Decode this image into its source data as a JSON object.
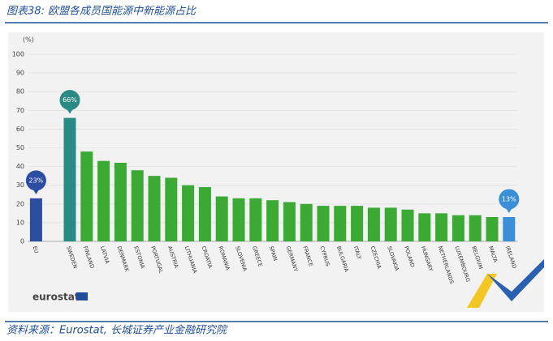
{
  "header": {
    "title": "图表38: 欧盟各成员国能源中新能源占比"
  },
  "footer": {
    "source": "资料来源：Eurostat, 长城证券产业金融研究院"
  },
  "chart_data": {
    "type": "bar",
    "y_label": "(%)",
    "logo": "eurostat",
    "categories": [
      "EU",
      null,
      "SWEDEN",
      "FINLAND",
      "LATVIA",
      "DENMARK",
      "ESTONIA",
      "PORTUGAL",
      "AUSTRIA",
      "LITHUANIA",
      "CROATIA",
      "ROMANIA",
      "SLOVENIA",
      "GREECE",
      "SPAIN",
      "GERMANY",
      "FRANCE",
      "CYPRUS",
      "BULGARIA",
      "ITALY",
      "CZECHIA",
      "SLOVAKIA",
      "POLAND",
      "HUNGARY",
      "NETHERLANDS",
      "LUXEMBOURG",
      "BELGIUM",
      "MALTA",
      "IRELAND"
    ],
    "values": [
      23,
      null,
      66,
      48,
      43,
      42,
      38,
      35,
      34,
      30,
      29,
      24,
      23,
      23,
      22,
      21,
      20,
      19,
      19,
      19,
      18,
      18,
      17,
      15,
      15,
      14,
      14,
      13,
      13
    ],
    "value_labels": [
      "23%",
      null,
      "66%",
      null,
      null,
      null,
      null,
      null,
      null,
      null,
      null,
      null,
      null,
      null,
      null,
      null,
      null,
      null,
      null,
      null,
      null,
      null,
      null,
      null,
      null,
      null,
      null,
      null,
      "13%"
    ],
    "colors": [
      "#2d4da3",
      null,
      "#2a8a84",
      "#3aaa35",
      "#3aaa35",
      "#3aaa35",
      "#3aaa35",
      "#3aaa35",
      "#3aaa35",
      "#3aaa35",
      "#3aaa35",
      "#3aaa35",
      "#3aaa35",
      "#3aaa35",
      "#3aaa35",
      "#3aaa35",
      "#3aaa35",
      "#3aaa35",
      "#3aaa35",
      "#3aaa35",
      "#3aaa35",
      "#3aaa35",
      "#3aaa35",
      "#3aaa35",
      "#3aaa35",
      "#3aaa35",
      "#3aaa35",
      "#3aaa35",
      "#3a8fd8"
    ],
    "ylim": [
      0,
      100
    ],
    "yticks": [
      0,
      10,
      20,
      30,
      40,
      50,
      60,
      70,
      80,
      90,
      100
    ],
    "grid": true
  }
}
